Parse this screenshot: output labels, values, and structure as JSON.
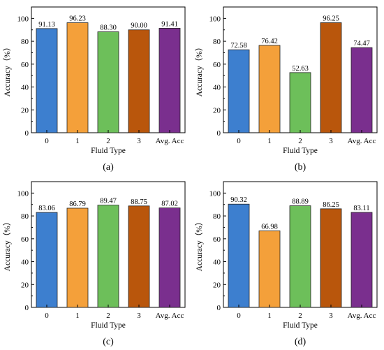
{
  "chart_data": [
    {
      "type": "bar",
      "panel_label": "(a)",
      "categories": [
        "0",
        "1",
        "2",
        "3",
        "Avg. Acc"
      ],
      "values": [
        91.13,
        96.23,
        88.3,
        90.0,
        91.41
      ],
      "value_labels": [
        "91.13",
        "96.23",
        "88.30",
        "90.00",
        "91.41"
      ],
      "xlabel": "Fluid Type",
      "ylabel": "Accuracy（%）",
      "ylim": [
        0,
        110
      ],
      "yticks": [
        "0",
        "20",
        "40",
        "60",
        "80",
        "100"
      ],
      "bar_colors": [
        "#3d7fcf",
        "#f4a03a",
        "#6dbf5a",
        "#b9560c",
        "#7a2f8e"
      ],
      "grid": false
    },
    {
      "type": "bar",
      "panel_label": "(b)",
      "categories": [
        "0",
        "1",
        "2",
        "3",
        "Avg. Acc"
      ],
      "values": [
        72.58,
        76.42,
        52.63,
        96.25,
        74.47
      ],
      "value_labels": [
        "72.58",
        "76.42",
        "52.63",
        "96.25",
        "74.47"
      ],
      "xlabel": "Fluid Type",
      "ylabel": "Accuracy（%）",
      "ylim": [
        0,
        110
      ],
      "yticks": [
        "0",
        "20",
        "40",
        "60",
        "80",
        "100"
      ],
      "bar_colors": [
        "#3d7fcf",
        "#f4a03a",
        "#6dbf5a",
        "#b9560c",
        "#7a2f8e"
      ],
      "grid": false
    },
    {
      "type": "bar",
      "panel_label": "(c)",
      "categories": [
        "0",
        "1",
        "2",
        "3",
        "Avg. Acc"
      ],
      "values": [
        83.06,
        86.79,
        89.47,
        88.75,
        87.02
      ],
      "value_labels": [
        "83.06",
        "86.79",
        "89.47",
        "88.75",
        "87.02"
      ],
      "xlabel": "Fluid Type",
      "ylabel": "Accuracy（%）",
      "ylim": [
        0,
        110
      ],
      "yticks": [
        "0",
        "20",
        "40",
        "60",
        "80",
        "100"
      ],
      "bar_colors": [
        "#3d7fcf",
        "#f4a03a",
        "#6dbf5a",
        "#b9560c",
        "#7a2f8e"
      ],
      "grid": false
    },
    {
      "type": "bar",
      "panel_label": "(d)",
      "categories": [
        "0",
        "1",
        "2",
        "3",
        "Avg. Acc"
      ],
      "values": [
        90.32,
        66.98,
        88.89,
        86.25,
        83.11
      ],
      "value_labels": [
        "90.32",
        "66.98",
        "88.89",
        "86.25",
        "83.11"
      ],
      "xlabel": "Fluid Type",
      "ylabel": "Accuracy（%）",
      "ylim": [
        0,
        110
      ],
      "yticks": [
        "0",
        "20",
        "40",
        "60",
        "80",
        "100"
      ],
      "bar_colors": [
        "#3d7fcf",
        "#f4a03a",
        "#6dbf5a",
        "#b9560c",
        "#7a2f8e"
      ],
      "grid": false
    }
  ]
}
